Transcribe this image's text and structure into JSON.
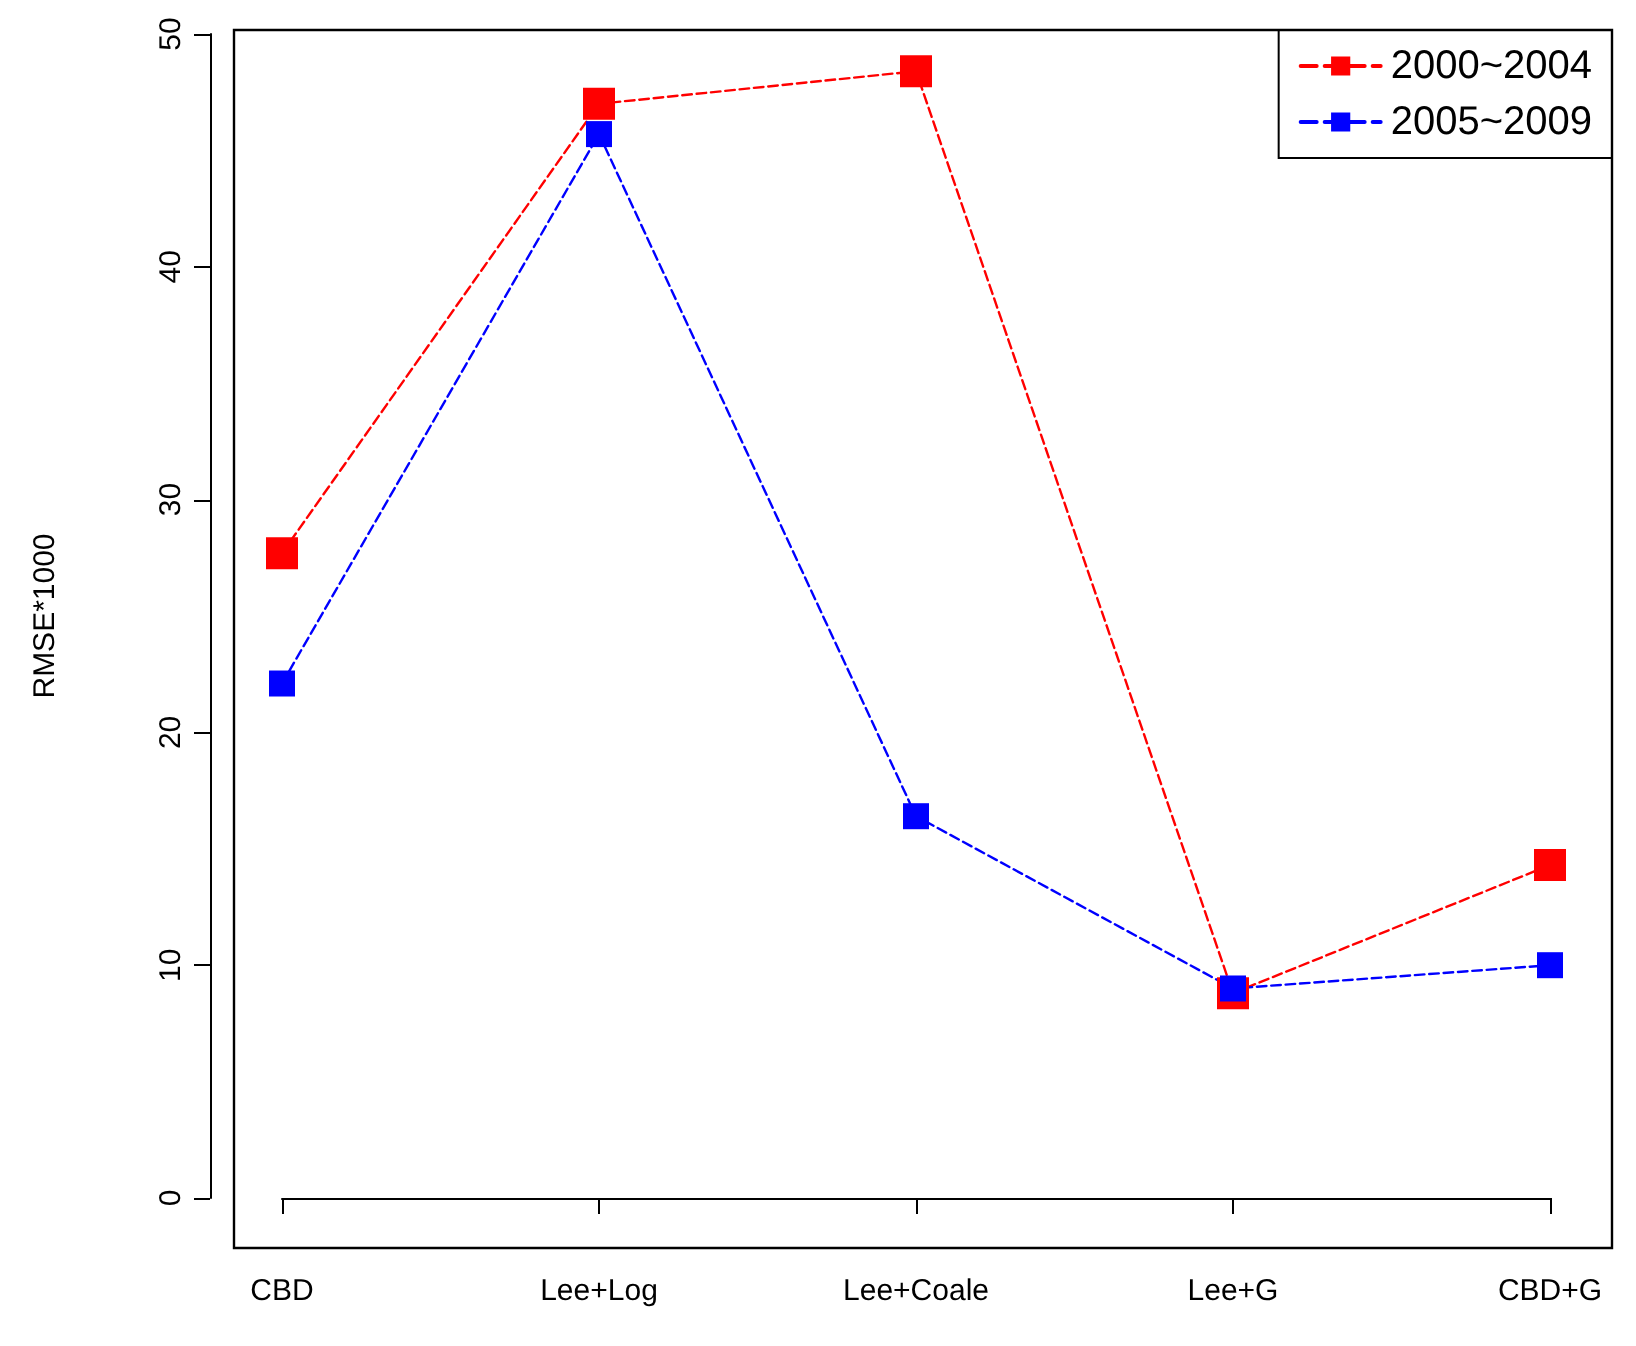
{
  "chart_data": {
    "type": "line",
    "ylabel": "RMSE*1000",
    "categories": [
      "CBD",
      "Lee+Log",
      "Lee+Coale",
      "Lee+G",
      "CBD+G"
    ],
    "series": [
      {
        "name": "2000~2004",
        "color": "#ff0000",
        "values": [
          27.7,
          47.0,
          48.4,
          8.8,
          14.3
        ]
      },
      {
        "name": "2005~2009",
        "color": "#0000ff",
        "values": [
          22.1,
          45.7,
          16.4,
          9.0,
          10.0
        ]
      }
    ],
    "ylim": [
      0,
      50
    ],
    "yticks": [
      0,
      10,
      20,
      30,
      40,
      50
    ],
    "grid": false,
    "legend": "top right",
    "marker": "square",
    "line_style": "dashed"
  }
}
